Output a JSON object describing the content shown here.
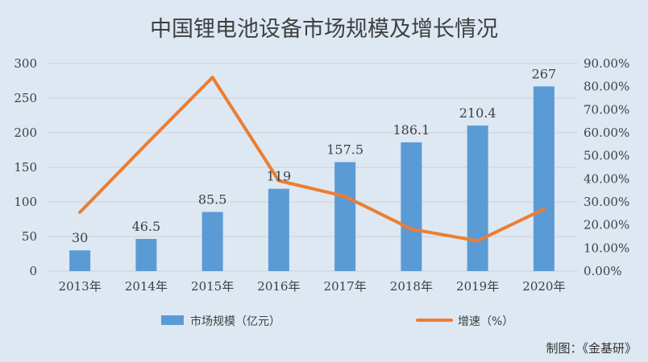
{
  "chart_data": {
    "type": "bar",
    "title": "中国锂电池设备市场规模及增长情况",
    "categories": [
      "2013年",
      "2014年",
      "2015年",
      "2016年",
      "2017年",
      "2018年",
      "2019年",
      "2020年"
    ],
    "series": [
      {
        "name": "市场规模（亿元）",
        "type": "bar",
        "axis": "left",
        "values": [
          30,
          46.5,
          85.5,
          119,
          157.5,
          186.1,
          210.4,
          267
        ],
        "labels": [
          "30",
          "46.5",
          "85.5",
          "119",
          "157.5",
          "186.1",
          "210.4",
          "267"
        ]
      },
      {
        "name": "增速（%）",
        "type": "line",
        "axis": "right",
        "values": [
          25.5,
          55,
          84,
          39.2,
          32.4,
          18.2,
          13.1,
          26.9
        ]
      }
    ],
    "left_axis": {
      "min": 0,
      "max": 300,
      "ticks": [
        "0",
        "50",
        "100",
        "150",
        "200",
        "250",
        "300"
      ]
    },
    "right_axis": {
      "min": 0,
      "max": 90,
      "ticks": [
        "0.00%",
        "10.00%",
        "20.00%",
        "30.00%",
        "40.00%",
        "50.00%",
        "60.00%",
        "70.00%",
        "80.00%",
        "90.00%"
      ]
    },
    "grid": true,
    "legend": "bottom",
    "colors": {
      "bar": "#5b9bd5",
      "line": "#ed7d31",
      "grid": "#d0d0d0",
      "background": "#dde8f3"
    }
  },
  "source_note": "制图：《金基研》"
}
